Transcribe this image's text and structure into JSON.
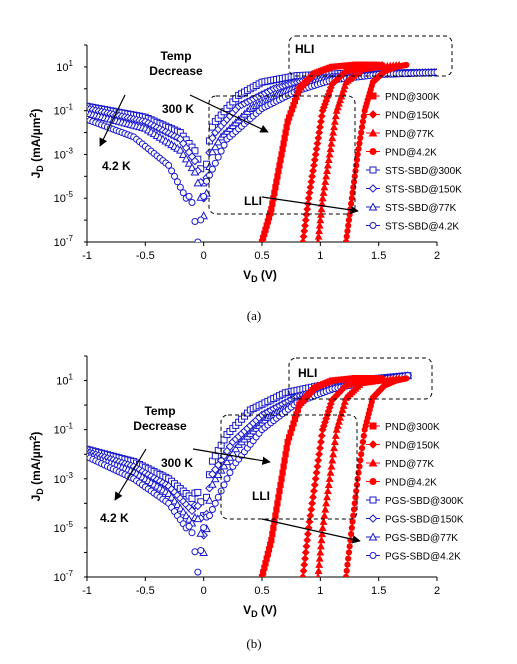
{
  "chart_data": [
    {
      "type": "line",
      "caption": "(a)",
      "xlabel_main": "V",
      "xlabel_sub": "D",
      "xlabel_unit": " (V)",
      "ylabel_main": "J",
      "ylabel_sub": "D",
      "ylabel_unit": " (mA/µm",
      "ylabel_sup": "2",
      "ylabel_end": ")",
      "xlim": [
        -1,
        2
      ],
      "ylim_log10": [
        -7,
        2
      ],
      "yscale": "log",
      "x_ticks": [
        -1,
        -0.5,
        0,
        0.5,
        1,
        1.5,
        2
      ],
      "x_tick_labels": [
        "-1",
        "-0.5",
        "0",
        "0.5",
        "1",
        "1.5",
        "2"
      ],
      "y_ticks_log10": [
        -7,
        -5,
        -3,
        -1,
        1
      ],
      "y_tick_labels": [
        [
          "10",
          "-7"
        ],
        [
          "10",
          "-5"
        ],
        [
          "10",
          "-3"
        ],
        [
          "10",
          "-1"
        ],
        [
          "10",
          "1"
        ]
      ],
      "legend": [
        {
          "label": "PND@300K",
          "color": "#ff0000",
          "marker": "square-filled"
        },
        {
          "label": "PND@150K",
          "color": "#ff0000",
          "marker": "diamond-filled"
        },
        {
          "label": "PND@77K",
          "color": "#ff0000",
          "marker": "triangle-filled"
        },
        {
          "label": "PND@4.2K",
          "color": "#ff0000",
          "marker": "circle-filled"
        },
        {
          "label": "STS-SBD@300K",
          "color": "#1a1acc",
          "marker": "square-open"
        },
        {
          "label": "STS-SBD@150K",
          "color": "#1a1acc",
          "marker": "diamond-open"
        },
        {
          "label": "STS-SBD@77K",
          "color": "#1a1acc",
          "marker": "triangle-open"
        },
        {
          "label": "STS-SBD@4.2K",
          "color": "#1a1acc",
          "marker": "circle-open"
        }
      ],
      "pnd_series": [
        {
          "name": "PND@300K",
          "x": [
            0.5,
            0.58,
            0.65,
            0.72,
            0.82,
            0.95,
            1.1,
            1.3,
            1.5
          ],
          "log10y": [
            -7,
            -5.5,
            -3.5,
            -1.5,
            0,
            0.7,
            1,
            1.1,
            1.1
          ]
        },
        {
          "name": "PND@150K",
          "x": [
            0.85,
            0.9,
            0.96,
            1.02,
            1.1,
            1.22,
            1.38,
            1.55
          ],
          "log10y": [
            -7,
            -5,
            -3,
            -1,
            0.2,
            0.8,
            1,
            1.1
          ]
        },
        {
          "name": "PND@77K",
          "x": [
            0.98,
            1.02,
            1.08,
            1.14,
            1.22,
            1.35,
            1.5,
            1.7
          ],
          "log10y": [
            -7,
            -5,
            -3,
            -1,
            0.3,
            0.9,
            1,
            1.1
          ]
        },
        {
          "name": "PND@4.2K",
          "x": [
            1.22,
            1.27,
            1.32,
            1.38,
            1.45,
            1.55,
            1.65,
            1.75
          ],
          "log10y": [
            -7,
            -5,
            -3,
            -1,
            0.3,
            0.8,
            1,
            1.1
          ]
        }
      ],
      "sbd_series": [
        {
          "name": "STS-SBD@300K",
          "vmin": 0.0,
          "floor": -4.3,
          "x": [
            -1,
            -0.5,
            -0.2,
            -0.05,
            0.1,
            0.3,
            0.5,
            0.8,
            1.2,
            1.6,
            2
          ],
          "log10y": [
            -0.8,
            -1.3,
            -2,
            -3,
            -1.5,
            -0.3,
            0.3,
            0.6,
            0.7,
            0.72,
            0.75
          ]
        },
        {
          "name": "STS-SBD@150K",
          "vmin": 0.0,
          "floor": -5.0,
          "x": [
            -1,
            -0.5,
            -0.2,
            -0.05,
            0.1,
            0.3,
            0.6,
            0.9,
            1.3,
            1.6,
            2
          ],
          "log10y": [
            -0.9,
            -1.5,
            -2.3,
            -3.5,
            -2,
            -0.8,
            0,
            0.45,
            0.65,
            0.7,
            0.75
          ]
        },
        {
          "name": "STS-SBD@77K",
          "vmin": 0.0,
          "floor": -5.8,
          "x": [
            -1,
            -0.5,
            -0.2,
            -0.05,
            0.15,
            0.4,
            0.7,
            1.0,
            1.4,
            1.7,
            2
          ],
          "log10y": [
            -1.1,
            -1.8,
            -2.8,
            -4,
            -2.2,
            -0.9,
            -0.1,
            0.4,
            0.65,
            0.7,
            0.75
          ]
        },
        {
          "name": "STS-SBD@4.2K",
          "vmin": -0.05,
          "floor": -7.0,
          "x": [
            -1,
            -0.6,
            -0.3,
            -0.15,
            0.0,
            0.2,
            0.5,
            0.8,
            1.1,
            1.5,
            2
          ],
          "log10y": [
            -1.4,
            -2.2,
            -3.5,
            -5,
            -4.5,
            -2.3,
            -0.9,
            -0.1,
            0.4,
            0.65,
            0.75
          ]
        }
      ],
      "annotations": {
        "hli": "HLI",
        "lli": "LLI",
        "temp": [
          "Temp",
          "Decrease"
        ],
        "t_hi": "300 K",
        "t_lo": "4.2 K"
      }
    },
    {
      "type": "line",
      "caption": "(b)",
      "xlabel_main": "V",
      "xlabel_sub": "D",
      "xlabel_unit": " (V)",
      "ylabel_main": "J",
      "ylabel_sub": "D",
      "ylabel_unit": " (mA/µm",
      "ylabel_sup": "2",
      "ylabel_end": ")",
      "xlim": [
        -1,
        2
      ],
      "ylim_log10": [
        -7,
        2
      ],
      "yscale": "log",
      "x_ticks": [
        -1,
        -0.5,
        0,
        0.5,
        1,
        1.5,
        2
      ],
      "x_tick_labels": [
        "-1",
        "-0.5",
        "0",
        "0.5",
        "1",
        "1.5",
        "2"
      ],
      "y_ticks_log10": [
        -7,
        -5,
        -3,
        -1,
        1
      ],
      "y_tick_labels": [
        [
          "10",
          "-7"
        ],
        [
          "10",
          "-5"
        ],
        [
          "10",
          "-3"
        ],
        [
          "10",
          "-1"
        ],
        [
          "10",
          "1"
        ]
      ],
      "legend": [
        {
          "label": "PND@300K",
          "color": "#ff0000",
          "marker": "square-filled"
        },
        {
          "label": "PND@150K",
          "color": "#ff0000",
          "marker": "diamond-filled"
        },
        {
          "label": "PND@77K",
          "color": "#ff0000",
          "marker": "triangle-filled"
        },
        {
          "label": "PND@4.2K",
          "color": "#ff0000",
          "marker": "circle-filled"
        },
        {
          "label": "PGS-SBD@300K",
          "color": "#1a1acc",
          "marker": "square-open"
        },
        {
          "label": "PGS-SBD@150K",
          "color": "#1a1acc",
          "marker": "diamond-open"
        },
        {
          "label": "PGS-SBD@77K",
          "color": "#1a1acc",
          "marker": "triangle-open"
        },
        {
          "label": "PGS-SBD@4.2K",
          "color": "#1a1acc",
          "marker": "circle-open"
        }
      ],
      "pnd_series": [
        {
          "name": "PND@300K",
          "x": [
            0.5,
            0.58,
            0.65,
            0.72,
            0.82,
            0.95,
            1.1,
            1.3,
            1.5
          ],
          "log10y": [
            -7,
            -5.5,
            -3.5,
            -1.5,
            0,
            0.7,
            1,
            1.1,
            1.1
          ]
        },
        {
          "name": "PND@150K",
          "x": [
            0.85,
            0.9,
            0.96,
            1.02,
            1.1,
            1.22,
            1.38,
            1.55
          ],
          "log10y": [
            -7,
            -5,
            -3,
            -1,
            0.2,
            0.8,
            1,
            1.1
          ]
        },
        {
          "name": "PND@77K",
          "x": [
            0.98,
            1.02,
            1.08,
            1.14,
            1.22,
            1.35,
            1.5,
            1.7
          ],
          "log10y": [
            -7,
            -5,
            -3,
            -1,
            0.3,
            0.9,
            1,
            1.1
          ]
        },
        {
          "name": "PND@4.2K",
          "x": [
            1.22,
            1.27,
            1.32,
            1.38,
            1.45,
            1.55,
            1.65,
            1.75
          ],
          "log10y": [
            -7,
            -5,
            -3,
            -1,
            0.3,
            0.8,
            1,
            1.1
          ]
        }
      ],
      "sbd_series": [
        {
          "name": "PGS-SBD@300K",
          "vmin": 0.0,
          "floor": -4.5,
          "x": [
            -1,
            -0.6,
            -0.3,
            -0.1,
            0.05,
            0.2,
            0.4,
            0.7,
            1.0,
            1.4,
            1.75
          ],
          "log10y": [
            -1.8,
            -2.3,
            -3,
            -3.8,
            -2.5,
            -1.2,
            -0.2,
            0.5,
            0.8,
            1.05,
            1.2
          ]
        },
        {
          "name": "PGS-SBD@150K",
          "vmin": 0.0,
          "floor": -5.3,
          "x": [
            -1,
            -0.6,
            -0.3,
            -0.1,
            0.05,
            0.25,
            0.5,
            0.8,
            1.1,
            1.45,
            1.75
          ],
          "log10y": [
            -1.9,
            -2.5,
            -3.3,
            -4.3,
            -3,
            -1.5,
            -0.4,
            0.35,
            0.75,
            1.05,
            1.2
          ]
        },
        {
          "name": "PGS-SBD@77K",
          "vmin": 0.0,
          "floor": -6.0,
          "x": [
            -1,
            -0.6,
            -0.3,
            -0.1,
            0.1,
            0.3,
            0.55,
            0.85,
            1.15,
            1.5,
            1.75
          ],
          "log10y": [
            -2,
            -2.7,
            -3.6,
            -4.8,
            -3,
            -1.6,
            -0.5,
            0.3,
            0.75,
            1.05,
            1.2
          ]
        },
        {
          "name": "PGS-SBD@4.2K",
          "vmin": -0.05,
          "floor": -6.8,
          "x": [
            -1,
            -0.6,
            -0.3,
            -0.15,
            0.05,
            0.25,
            0.5,
            0.8,
            1.1,
            1.45,
            1.75
          ],
          "log10y": [
            -2.1,
            -3,
            -4,
            -5,
            -4.5,
            -2.5,
            -1,
            0.1,
            0.65,
            1.0,
            1.2
          ]
        }
      ],
      "annotations": {
        "hli": "HLI",
        "lli": "LLI",
        "temp": [
          "Temp",
          "Decrease"
        ],
        "t_hi": "300 K",
        "t_lo": "4.2 K"
      }
    }
  ]
}
